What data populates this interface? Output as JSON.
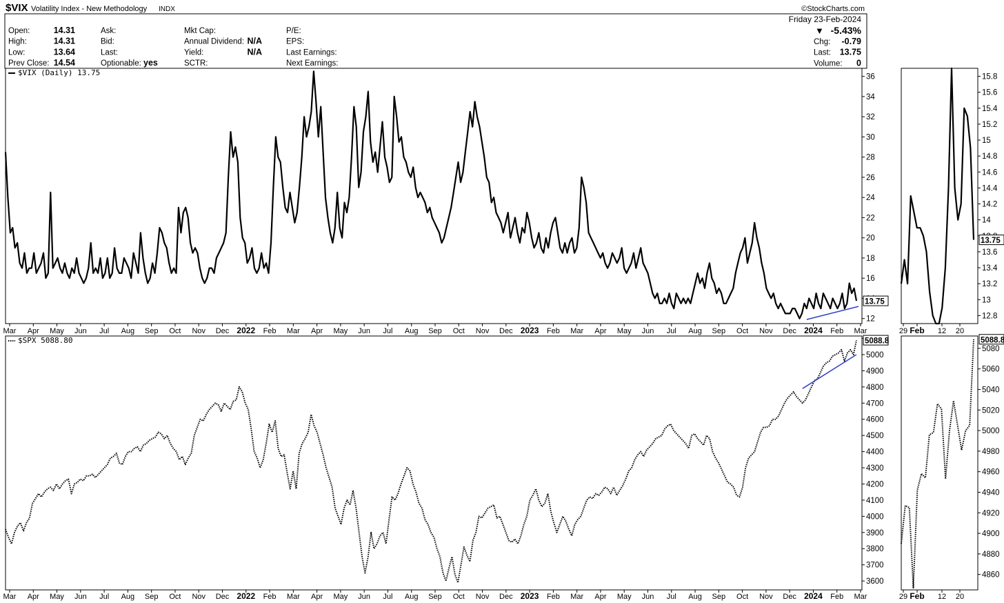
{
  "header": {
    "symbol": "$VIX",
    "name": "Volatility Index - New Methodology",
    "exchange": "INDX",
    "watermark": "©StockCharts.com",
    "date": "Friday   23-Feb-2024",
    "change_pct": "-5.43%",
    "quote_left": [
      {
        "label": "Open:",
        "value": "14.31"
      },
      {
        "label": "High:",
        "value": "14.31"
      },
      {
        "label": "Low:",
        "value": "13.64"
      },
      {
        "label": "Prev Close:",
        "value": "14.54"
      }
    ],
    "quote_mid1": [
      {
        "label": "Ask:",
        "value": ""
      },
      {
        "label": "Bid:",
        "value": ""
      },
      {
        "label": "Last:",
        "value": ""
      },
      {
        "label": "Optionable:",
        "value": "yes"
      }
    ],
    "quote_mid2": [
      {
        "label": "Mkt Cap:",
        "value": ""
      },
      {
        "label": "Annual Dividend:",
        "value": "N/A"
      },
      {
        "label": "Yield:",
        "value": "N/A"
      },
      {
        "label": "SCTR:",
        "value": ""
      }
    ],
    "quote_mid3": [
      {
        "label": "P/E:",
        "value": ""
      },
      {
        "label": "EPS:",
        "value": ""
      },
      {
        "label": "Last Earnings:",
        "value": ""
      },
      {
        "label": "Next Earnings:",
        "value": ""
      }
    ],
    "quote_right": [
      {
        "label": "Chg:",
        "value": "-0.79"
      },
      {
        "label": "Last:",
        "value": "13.75"
      },
      {
        "label": "Volume:",
        "value": "0"
      }
    ]
  },
  "colors": {
    "line": "#000000",
    "trendline": "#3340c8",
    "down": "#9b1030",
    "axis": "#000000",
    "grid": "#bfbfbf"
  },
  "chart_data": [
    {
      "id": "vix",
      "type": "line",
      "legend": "$VIX (Daily) 13.75",
      "last_label": "13.75",
      "x_ticks": [
        "Mar",
        "Apr",
        "May",
        "Jun",
        "Jul",
        "Aug",
        "Sep",
        "Oct",
        "Nov",
        "Dec",
        "2022",
        "Feb",
        "Mar",
        "Apr",
        "May",
        "Jun",
        "Jul",
        "Aug",
        "Sep",
        "Oct",
        "Nov",
        "Dec",
        "2023",
        "Feb",
        "Mar",
        "Apr",
        "May",
        "Jun",
        "Jul",
        "Aug",
        "Sep",
        "Oct",
        "Nov",
        "Dec",
        "2024",
        "Feb",
        "Mar"
      ],
      "bold_ticks": [
        "2022",
        "2023",
        "2024"
      ],
      "y_ticks": [
        12,
        14,
        16,
        18,
        20,
        22,
        24,
        26,
        28,
        30,
        32,
        34,
        36
      ],
      "ylim": [
        11.5,
        36.8
      ],
      "values": [
        28.5,
        24.0,
        20.5,
        21.0,
        19.0,
        19.5,
        17.5,
        17.0,
        18.5,
        16.5,
        17.0,
        17.0,
        18.5,
        16.5,
        17.0,
        17.5,
        18.5,
        16.0,
        16.5,
        24.5,
        17.0,
        17.5,
        18.0,
        17.0,
        16.5,
        17.5,
        16.5,
        16.0,
        17.0,
        16.5,
        18.0,
        16.5,
        16.0,
        15.5,
        16.0,
        17.0,
        19.5,
        16.5,
        17.0,
        16.5,
        18.0,
        16.0,
        16.5,
        18.0,
        16.0,
        16.5,
        19.0,
        17.0,
        16.5,
        16.5,
        18.0,
        17.5,
        17.0,
        16.0,
        18.5,
        17.5,
        16.5,
        20.5,
        18.0,
        16.5,
        15.5,
        16.0,
        17.5,
        16.5,
        18.5,
        21.0,
        20.5,
        19.5,
        19.0,
        17.5,
        16.5,
        17.0,
        16.5,
        23.0,
        20.5,
        22.5,
        23.0,
        22.0,
        19.5,
        18.5,
        19.0,
        18.5,
        17.0,
        16.0,
        15.5,
        16.0,
        17.0,
        17.0,
        16.5,
        18.0,
        18.5,
        19.0,
        19.5,
        20.5,
        26.0,
        30.5,
        28.0,
        29.0,
        27.5,
        22.0,
        20.0,
        19.5,
        17.5,
        18.0,
        19.0,
        17.0,
        16.5,
        17.0,
        18.5,
        17.0,
        17.5,
        16.5,
        19.5,
        25.0,
        30.0,
        28.0,
        27.5,
        25.0,
        23.0,
        22.5,
        24.5,
        23.0,
        21.5,
        22.5,
        25.0,
        28.0,
        32.0,
        30.0,
        31.0,
        32.5,
        36.5,
        33.5,
        30.0,
        33.0,
        28.5,
        24.0,
        22.0,
        20.5,
        19.5,
        21.0,
        24.5,
        21.0,
        20.0,
        23.5,
        22.5,
        24.0,
        28.0,
        33.0,
        31.0,
        25.0,
        26.5,
        30.5,
        32.0,
        34.5,
        29.5,
        27.5,
        28.5,
        26.5,
        29.0,
        31.5,
        28.0,
        27.0,
        25.5,
        26.0,
        34.0,
        32.0,
        29.5,
        30.0,
        28.0,
        27.5,
        26.5,
        26.0,
        27.0,
        25.0,
        24.0,
        24.5,
        24.0,
        23.5,
        22.5,
        23.0,
        22.0,
        21.5,
        21.0,
        20.5,
        19.5,
        20.0,
        21.0,
        22.0,
        23.0,
        24.5,
        26.0,
        27.5,
        25.5,
        26.5,
        28.5,
        30.5,
        32.5,
        31.0,
        33.5,
        32.0,
        31.0,
        29.5,
        28.0,
        26.0,
        25.5,
        23.5,
        24.0,
        22.5,
        22.0,
        21.5,
        20.5,
        21.5,
        22.5,
        20.0,
        21.0,
        22.0,
        20.5,
        19.5,
        21.0,
        20.5,
        22.5,
        21.5,
        20.0,
        19.0,
        19.5,
        20.5,
        19.0,
        18.5,
        20.0,
        19.0,
        20.5,
        21.5,
        22.0,
        20.5,
        19.0,
        18.5,
        19.5,
        18.5,
        19.5,
        20.0,
        18.5,
        19.0,
        21.0,
        26.0,
        25.0,
        23.5,
        20.5,
        20.0,
        19.5,
        19.0,
        18.5,
        18.0,
        18.5,
        17.5,
        17.0,
        17.5,
        18.5,
        18.0,
        17.5,
        18.0,
        19.0,
        17.0,
        16.5,
        17.0,
        17.5,
        18.5,
        17.0,
        18.0,
        19.0,
        17.5,
        17.0,
        16.5,
        15.5,
        14.5,
        14.0,
        14.5,
        13.5,
        13.5,
        14.0,
        13.5,
        14.5,
        13.5,
        13.0,
        14.5,
        14.0,
        13.5,
        14.0,
        13.5,
        14.0,
        13.5,
        14.5,
        15.5,
        16.5,
        15.5,
        16.0,
        15.0,
        16.5,
        17.5,
        16.0,
        15.5,
        14.5,
        15.0,
        14.5,
        13.5,
        13.5,
        14.0,
        14.5,
        15.0,
        16.5,
        17.5,
        18.5,
        19.0,
        20.0,
        17.5,
        18.5,
        19.5,
        21.5,
        20.0,
        19.0,
        17.5,
        16.5,
        15.0,
        14.5,
        14.0,
        14.5,
        13.5,
        13.0,
        13.5,
        13.0,
        12.5,
        12.5,
        12.5,
        13.0,
        13.0,
        12.5,
        12.0,
        12.5,
        13.5,
        13.0,
        14.0,
        13.5,
        13.0,
        14.5,
        13.5,
        13.0,
        14.5,
        14.0,
        13.5,
        13.0,
        14.0,
        13.5,
        13.0,
        13.5,
        14.5,
        13.0,
        13.5,
        15.5,
        14.5,
        15.0,
        13.75
      ]
    },
    {
      "id": "vix-inset",
      "type": "line",
      "x_ticks": [
        "29",
        "Feb",
        "12",
        "20"
      ],
      "bold_ticks": [
        "Feb"
      ],
      "y_ticks": [
        12.8,
        13.0,
        13.2,
        13.4,
        13.6,
        13.8,
        14.0,
        14.2,
        14.4,
        14.6,
        14.8,
        15.0,
        15.2,
        15.4,
        15.6,
        15.8
      ],
      "ylim": [
        12.7,
        15.9
      ],
      "last_label": "13.75",
      "values": [
        13.2,
        13.5,
        13.2,
        14.3,
        14.1,
        13.9,
        13.9,
        13.8,
        13.6,
        13.1,
        12.8,
        12.7,
        12.7,
        12.9,
        13.4,
        14.4,
        15.9,
        14.4,
        14.0,
        14.2,
        15.4,
        15.3,
        14.9,
        13.75
      ]
    },
    {
      "id": "spx",
      "type": "line",
      "style": "dotted",
      "legend": "$SPX 5088.80",
      "last_label": "5088.8",
      "x_ticks": [
        "Mar",
        "Apr",
        "May",
        "Jun",
        "Jul",
        "Aug",
        "Sep",
        "Oct",
        "Nov",
        "Dec",
        "2022",
        "Feb",
        "Mar",
        "Apr",
        "May",
        "Jun",
        "Jul",
        "Aug",
        "Sep",
        "Oct",
        "Nov",
        "Dec",
        "2023",
        "Feb",
        "Mar",
        "Apr",
        "May",
        "Jun",
        "Jul",
        "Aug",
        "Sep",
        "Oct",
        "Nov",
        "Dec",
        "2024",
        "Feb",
        "Mar"
      ],
      "bold_ticks": [
        "2022",
        "2023",
        "2024"
      ],
      "y_ticks": [
        3600,
        3700,
        3800,
        3900,
        4000,
        4100,
        4200,
        4300,
        4400,
        4500,
        4600,
        4700,
        4800,
        4900,
        5000,
        5100
      ],
      "ylim": [
        3545,
        5115
      ],
      "values": [
        3920,
        3870,
        3830,
        3900,
        3940,
        3960,
        3910,
        3960,
        3990,
        4080,
        4110,
        4140,
        4120,
        4150,
        4170,
        4180,
        4160,
        4200,
        4170,
        4200,
        4220,
        4230,
        4140,
        4200,
        4210,
        4230,
        4220,
        4250,
        4250,
        4260,
        4240,
        4260,
        4280,
        4300,
        4320,
        4360,
        4370,
        4390,
        4330,
        4320,
        4370,
        4400,
        4400,
        4420,
        4430,
        4400,
        4440,
        4450,
        4470,
        4480,
        4490,
        4520,
        4510,
        4480,
        4500,
        4450,
        4420,
        4400,
        4350,
        4370,
        4320,
        4360,
        4390,
        4500,
        4550,
        4600,
        4590,
        4630,
        4660,
        4680,
        4700,
        4690,
        4650,
        4700,
        4680,
        4660,
        4710,
        4720,
        4800,
        4770,
        4700,
        4660,
        4540,
        4400,
        4360,
        4300,
        4350,
        4450,
        4570,
        4520,
        4590,
        4420,
        4370,
        4380,
        4270,
        4170,
        4280,
        4170,
        4390,
        4450,
        4480,
        4520,
        4630,
        4560,
        4520,
        4450,
        4380,
        4300,
        4240,
        4180,
        4050,
        4000,
        3950,
        4050,
        4100,
        4070,
        4160,
        4050,
        3900,
        3750,
        3650,
        3750,
        3900,
        3800,
        3830,
        3880,
        3900,
        3830,
        3980,
        4120,
        4100,
        4140,
        4200,
        4250,
        4300,
        4280,
        4200,
        4150,
        4080,
        4050,
        3980,
        3950,
        3900,
        3870,
        3800,
        3750,
        3650,
        3600,
        3680,
        3750,
        3640,
        3590,
        3700,
        3810,
        3760,
        3720,
        3850,
        3900,
        4000,
        3990,
        4020,
        4050,
        4060,
        4070,
        3990,
        4000,
        3950,
        3900,
        3850,
        3840,
        3860,
        3830,
        3880,
        3950,
        4000,
        4100,
        4130,
        4170,
        4100,
        4060,
        4080,
        4140,
        4030,
        3960,
        3900,
        3950,
        4000,
        3970,
        3920,
        3880,
        3950,
        3980,
        4000,
        4050,
        4100,
        4120,
        4110,
        4140,
        4130,
        4150,
        4180,
        4170,
        4140,
        4180,
        4130,
        4160,
        4190,
        4230,
        4280,
        4300,
        4350,
        4380,
        4400,
        4370,
        4410,
        4430,
        4450,
        4480,
        4490,
        4500,
        4540,
        4560,
        4570,
        4530,
        4510,
        4490,
        4470,
        4450,
        4420,
        4500,
        4510,
        4480,
        4460,
        4440,
        4500,
        4480,
        4400,
        4360,
        4330,
        4290,
        4250,
        4210,
        4200,
        4180,
        4130,
        4120,
        4180,
        4300,
        4360,
        4380,
        4400,
        4460,
        4520,
        4550,
        4550,
        4560,
        4600,
        4600,
        4620,
        4660,
        4700,
        4730,
        4750,
        4770,
        4740,
        4720,
        4700,
        4720,
        4760,
        4800,
        4840,
        4850,
        4890,
        4930,
        4950,
        4960,
        4990,
        5000,
        5010,
        5030,
        4960,
        5010,
        5030,
        5000,
        5089
      ]
    },
    {
      "id": "spx-inset",
      "type": "line",
      "style": "dotted",
      "x_ticks": [
        "29",
        "Feb",
        "12",
        "20"
      ],
      "bold_ticks": [
        "Feb"
      ],
      "y_ticks": [
        4860,
        4880,
        4900,
        4920,
        4940,
        4960,
        4980,
        5000,
        5020,
        5040,
        5060,
        5080
      ],
      "ylim": [
        4845,
        5092
      ],
      "last_label": "5088.8",
      "values": [
        4890,
        4927,
        4925,
        4847,
        4942,
        4958,
        4954,
        4996,
        4998,
        5026,
        5021,
        4953,
        5000,
        5029,
        5005,
        4981,
        5000,
        5005,
        5088.8
      ]
    }
  ]
}
